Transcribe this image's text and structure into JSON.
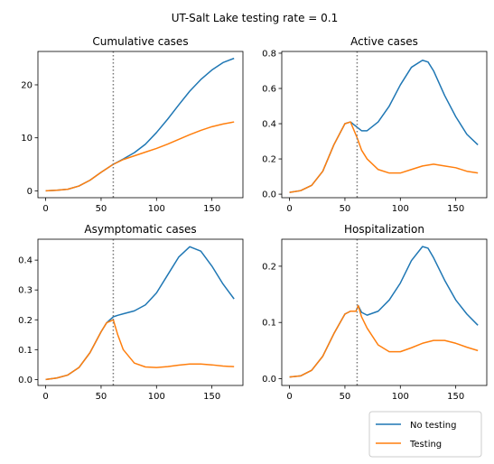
{
  "figure": {
    "suptitle": "UT-Salt Lake testing rate = 0.1",
    "colors": {
      "no_testing": "#1f77b4",
      "testing": "#ff7f0e",
      "vline": "#777777"
    },
    "legend": {
      "placement": "bottom-right",
      "entries": [
        "No testing",
        "Testing"
      ]
    }
  },
  "chart_data": [
    {
      "type": "line",
      "title": "Cumulative cases",
      "xlim": [
        -7,
        178
      ],
      "ylim": [
        -1.3,
        26.3
      ],
      "xticks": [
        0,
        50,
        100,
        150
      ],
      "yticks": [
        0,
        10,
        20
      ],
      "vline": 61,
      "series": [
        {
          "name": "No testing",
          "x": [
            0,
            10,
            20,
            30,
            40,
            50,
            61,
            70,
            80,
            90,
            100,
            110,
            120,
            130,
            140,
            150,
            160,
            170
          ],
          "y": [
            0,
            0.1,
            0.3,
            0.9,
            2.0,
            3.5,
            5.0,
            6.0,
            7.2,
            8.8,
            11.0,
            13.5,
            16.2,
            18.8,
            21.0,
            22.8,
            24.2,
            25.0
          ]
        },
        {
          "name": "Testing",
          "x": [
            0,
            10,
            20,
            30,
            40,
            50,
            61,
            70,
            80,
            90,
            100,
            110,
            120,
            130,
            140,
            150,
            160,
            170
          ],
          "y": [
            0,
            0.1,
            0.3,
            0.9,
            2.0,
            3.5,
            5.0,
            5.9,
            6.6,
            7.3,
            8.0,
            8.8,
            9.7,
            10.6,
            11.4,
            12.1,
            12.6,
            13.0
          ]
        }
      ]
    },
    {
      "type": "line",
      "title": "Active cases",
      "xlim": [
        -7,
        178
      ],
      "ylim": [
        -0.02,
        0.81
      ],
      "xticks": [
        0,
        50,
        100,
        150
      ],
      "yticks": [
        0.0,
        0.2,
        0.4,
        0.6,
        0.8
      ],
      "vline": 61,
      "series": [
        {
          "name": "No testing",
          "x": [
            0,
            10,
            20,
            30,
            40,
            50,
            55,
            61,
            65,
            70,
            80,
            90,
            100,
            110,
            120,
            125,
            130,
            140,
            150,
            160,
            170
          ],
          "y": [
            0.01,
            0.02,
            0.05,
            0.13,
            0.28,
            0.4,
            0.41,
            0.38,
            0.36,
            0.36,
            0.41,
            0.5,
            0.62,
            0.72,
            0.76,
            0.75,
            0.7,
            0.56,
            0.44,
            0.34,
            0.28
          ]
        },
        {
          "name": "Testing",
          "x": [
            0,
            10,
            20,
            30,
            40,
            50,
            55,
            61,
            65,
            70,
            80,
            90,
            100,
            110,
            120,
            130,
            140,
            150,
            160,
            170
          ],
          "y": [
            0.01,
            0.02,
            0.05,
            0.13,
            0.28,
            0.4,
            0.41,
            0.32,
            0.25,
            0.2,
            0.14,
            0.12,
            0.12,
            0.14,
            0.16,
            0.17,
            0.16,
            0.15,
            0.13,
            0.12
          ]
        }
      ]
    },
    {
      "type": "line",
      "title": "Asymptomatic cases",
      "xlim": [
        -7,
        178
      ],
      "ylim": [
        -0.02,
        0.47
      ],
      "xticks": [
        0,
        50,
        100,
        150
      ],
      "yticks": [
        0.0,
        0.1,
        0.2,
        0.3,
        0.4
      ],
      "vline": 61,
      "series": [
        {
          "name": "No testing",
          "x": [
            0,
            10,
            20,
            30,
            40,
            50,
            55,
            61,
            65,
            70,
            80,
            90,
            100,
            110,
            120,
            130,
            140,
            150,
            160,
            170
          ],
          "y": [
            0,
            0.005,
            0.015,
            0.04,
            0.09,
            0.16,
            0.19,
            0.21,
            0.215,
            0.22,
            0.23,
            0.25,
            0.29,
            0.35,
            0.41,
            0.445,
            0.43,
            0.38,
            0.32,
            0.27
          ]
        },
        {
          "name": "Testing",
          "x": [
            0,
            10,
            20,
            30,
            40,
            50,
            55,
            61,
            65,
            70,
            80,
            90,
            100,
            110,
            120,
            130,
            140,
            150,
            160,
            170
          ],
          "y": [
            0,
            0.005,
            0.015,
            0.04,
            0.09,
            0.16,
            0.19,
            0.2,
            0.15,
            0.1,
            0.055,
            0.042,
            0.04,
            0.043,
            0.048,
            0.052,
            0.052,
            0.049,
            0.045,
            0.043
          ]
        }
      ]
    },
    {
      "type": "line",
      "title": "Hospitalization",
      "xlim": [
        -7,
        178
      ],
      "ylim": [
        -0.012,
        0.248
      ],
      "xticks": [
        0,
        50,
        100,
        150
      ],
      "yticks": [
        0.0,
        0.1,
        0.2
      ],
      "vline": 61,
      "series": [
        {
          "name": "No testing",
          "x": [
            0,
            10,
            20,
            30,
            40,
            50,
            55,
            60,
            62,
            65,
            70,
            80,
            90,
            100,
            110,
            120,
            125,
            130,
            140,
            150,
            160,
            170
          ],
          "y": [
            0.003,
            0.005,
            0.015,
            0.04,
            0.08,
            0.115,
            0.12,
            0.12,
            0.13,
            0.118,
            0.113,
            0.12,
            0.14,
            0.17,
            0.21,
            0.235,
            0.232,
            0.215,
            0.175,
            0.14,
            0.115,
            0.095
          ]
        },
        {
          "name": "Testing",
          "x": [
            0,
            10,
            20,
            30,
            40,
            50,
            55,
            60,
            62,
            65,
            70,
            80,
            90,
            100,
            110,
            120,
            130,
            140,
            150,
            160,
            170
          ],
          "y": [
            0.003,
            0.005,
            0.015,
            0.04,
            0.08,
            0.115,
            0.12,
            0.12,
            0.13,
            0.11,
            0.09,
            0.06,
            0.048,
            0.048,
            0.055,
            0.063,
            0.068,
            0.068,
            0.063,
            0.056,
            0.05
          ]
        }
      ]
    }
  ]
}
